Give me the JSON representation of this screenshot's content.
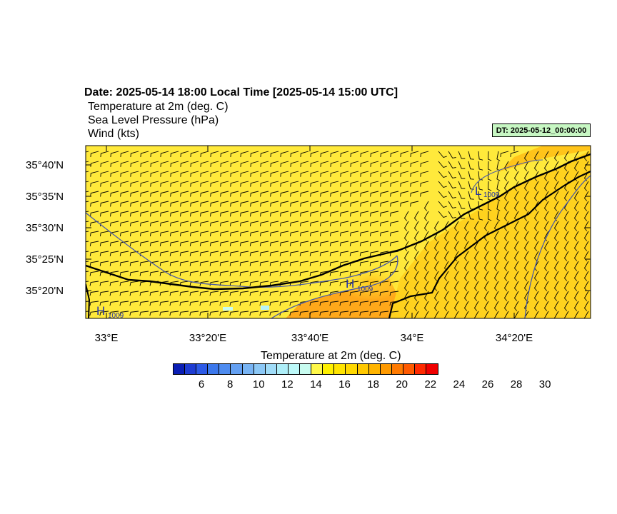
{
  "header": {
    "date_line": "Date: 2025-05-14  18:00 Local Time [2025-05-14  15:00 UTC]",
    "variables": [
      "Temperature at 2m   (deg. C)",
      "Sea Level Pressure   (hPa)",
      "Wind   (kts)"
    ],
    "dt_badge": "DT: 2025-05-12_00:00:00"
  },
  "map": {
    "lat_labels": [
      "35°40'N",
      "35°35'N",
      "35°30'N",
      "35°25'N",
      "35°20'N"
    ],
    "lon_labels": [
      "33°E",
      "33°20'E",
      "33°40'E",
      "34°E",
      "34°20'E"
    ],
    "pressure_labels": [
      {
        "letter": "H",
        "value": "1009"
      },
      {
        "letter": "H",
        "value": "1009"
      },
      {
        "letter": "L",
        "value": "1009"
      }
    ],
    "isobar_color": "#4a5aa8",
    "coast_color": "#000000",
    "background_fill": "#ffe93b"
  },
  "colorbar": {
    "title": "Temperature at 2m  (deg. C)",
    "tick_labels": [
      "6",
      "8",
      "10",
      "12",
      "14",
      "16",
      "18",
      "20",
      "22",
      "24",
      "26",
      "28",
      "30"
    ],
    "colors": [
      "#0a1eb4",
      "#1e3cd2",
      "#2d5ae6",
      "#3c78ec",
      "#4f8cf0",
      "#64a0f2",
      "#78b4f4",
      "#8cc8f6",
      "#a0dcf8",
      "#aeeef8",
      "#bcf8f8",
      "#c8fcf0",
      "#fff84a",
      "#fff000",
      "#ffe400",
      "#ffd800",
      "#ffc800",
      "#ffb400",
      "#ff9a00",
      "#ff7a00",
      "#ff5a00",
      "#ff2a00",
      "#f00000"
    ]
  }
}
